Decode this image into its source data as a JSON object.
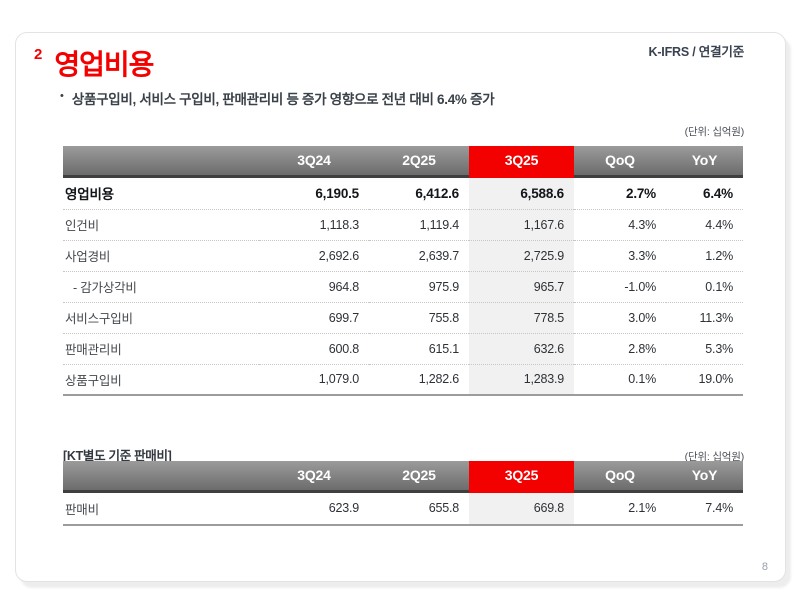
{
  "meta": {
    "standard_label": "K-IFRS / 연결기준",
    "page_number": "8"
  },
  "header": {
    "section_number": "2",
    "title": "영업비용",
    "bullet_dot": "•",
    "bullet": "상품구입비, 서비스 구입비, 판매관리비 등 증가 영향으로 전년 대비 6.4% 증가"
  },
  "colors": {
    "accent_red": "#f30000",
    "header_gradient_top": "#9b9b9b",
    "header_gradient_bottom": "#6c6c6c",
    "highlight_column_bg": "#f1f1f1"
  },
  "main_table": {
    "unit_label": "(단위: 십억원)",
    "columns": [
      "3Q24",
      "2Q25",
      "3Q25",
      "QoQ",
      "YoY"
    ],
    "highlight_column_index": 2,
    "rows": [
      {
        "label": "영업비용",
        "values": [
          "6,190.5",
          "6,412.6",
          "6,588.6",
          "2.7%",
          "6.4%"
        ],
        "emphasis": true
      },
      {
        "label": "인건비",
        "values": [
          "1,118.3",
          "1,119.4",
          "1,167.6",
          "4.3%",
          "4.4%"
        ]
      },
      {
        "label": "사업경비",
        "values": [
          "2,692.6",
          "2,639.7",
          "2,725.9",
          "3.3%",
          "1.2%"
        ]
      },
      {
        "label": "- 감가상각비",
        "values": [
          "964.8",
          "975.9",
          "965.7",
          "-1.0%",
          "0.1%"
        ],
        "indent": true
      },
      {
        "label": "서비스구입비",
        "values": [
          "699.7",
          "755.8",
          "778.5",
          "3.0%",
          "11.3%"
        ]
      },
      {
        "label": "판매관리비",
        "values": [
          "600.8",
          "615.1",
          "632.6",
          "2.8%",
          "5.3%"
        ]
      },
      {
        "label": "상품구입비",
        "values": [
          "1,079.0",
          "1,282.6",
          "1,283.9",
          "0.1%",
          "19.0%"
        ]
      }
    ]
  },
  "secondary_table": {
    "section_label": "[KT별도 기준 판매비]",
    "unit_label": "(단위: 십억원)",
    "columns": [
      "3Q24",
      "2Q25",
      "3Q25",
      "QoQ",
      "YoY"
    ],
    "highlight_column_index": 2,
    "rows": [
      {
        "label": "판매비",
        "values": [
          "623.9",
          "655.8",
          "669.8",
          "2.1%",
          "7.4%"
        ]
      }
    ]
  }
}
